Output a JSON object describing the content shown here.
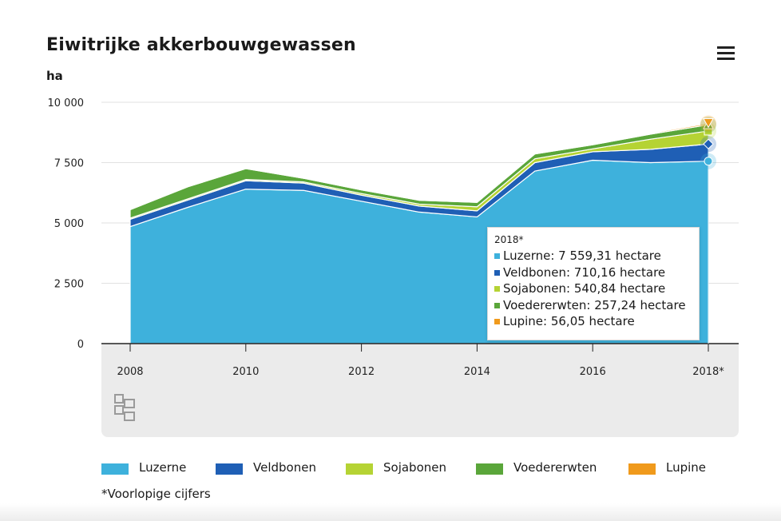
{
  "header": {
    "title": "Eiwitrijke akkerbouwgewassen",
    "unit": "ha",
    "menu_icon": "hamburger-menu-icon"
  },
  "colors": {
    "Luzerne": "#3eb1dc",
    "Veldbonen": "#1f5fb5",
    "Sojabonen": "#b5d334",
    "Voedererwten": "#5aa63a",
    "Lupine": "#f09a1c"
  },
  "tooltip": {
    "header": "2018*",
    "rows": [
      "Luzerne: 7 559,31 hectare",
      "Veldbonen: 710,16 hectare",
      "Sojabonen: 540,84 hectare",
      "Voedererwten: 257,24 hectare",
      "Lupine: 56,05 hectare"
    ]
  },
  "legend": {
    "items": [
      "Luzerne",
      "Veldbonen",
      "Sojabonen",
      "Voedererwten",
      "Lupine"
    ]
  },
  "footnote": "*Voorlopige cijfers",
  "logo_icon": "cbs-logo-icon",
  "chart_data": {
    "type": "area",
    "stacked": true,
    "title": "Eiwitrijke akkerbouwgewassen",
    "ylabel": "ha",
    "xlabel": "",
    "x": [
      2008,
      2009,
      2010,
      2011,
      2012,
      2013,
      2014,
      2015,
      2016,
      2017,
      2018
    ],
    "x_tick_labels": [
      "2008",
      "2010",
      "2012",
      "2014",
      "2016",
      "2018*"
    ],
    "x_tick_values": [
      2008,
      2010,
      2012,
      2014,
      2016,
      2018
    ],
    "y_ticks": [
      0,
      2500,
      5000,
      7500,
      10000
    ],
    "y_tick_labels": [
      "0",
      "2 500",
      "5 000",
      "7 500",
      "10 000"
    ],
    "ylim": [
      0,
      10000
    ],
    "grid": true,
    "legend_position": "bottom",
    "series": [
      {
        "name": "Luzerne",
        "values": [
          4850,
          5650,
          6400,
          6350,
          5900,
          5450,
          5250,
          7150,
          7600,
          7500,
          7559.31
        ]
      },
      {
        "name": "Veldbonen",
        "values": [
          300,
          300,
          350,
          300,
          250,
          250,
          250,
          350,
          350,
          550,
          710.16
        ]
      },
      {
        "name": "Sojabonen",
        "values": [
          50,
          50,
          50,
          50,
          70,
          80,
          170,
          160,
          120,
          420,
          540.84
        ]
      },
      {
        "name": "Voedererwten",
        "values": [
          350,
          500,
          450,
          150,
          150,
          160,
          180,
          200,
          170,
          210,
          257.24
        ]
      },
      {
        "name": "Lupine",
        "values": [
          10,
          10,
          10,
          10,
          10,
          15,
          15,
          20,
          20,
          40,
          56.05
        ]
      }
    ]
  }
}
